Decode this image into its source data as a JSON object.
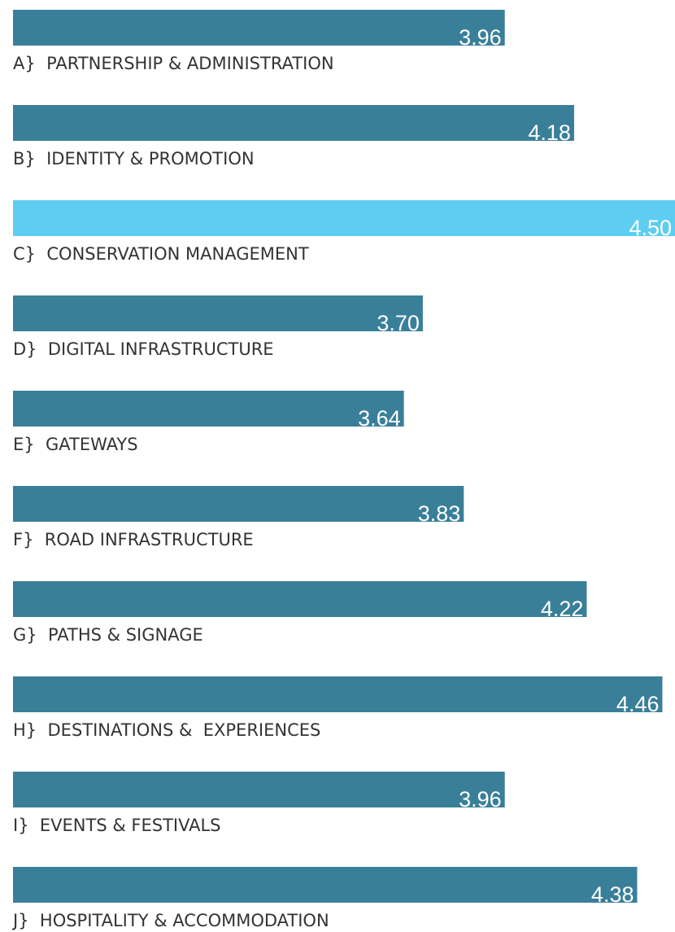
{
  "chart_data": {
    "type": "barh",
    "categories": [
      "A}  PARTNERSHIP & ADMINISTRATION",
      "B}  IDENTITY & PROMOTION",
      "C}  CONSERVATION MANAGEMENT",
      "D}  DIGITAL INFRASTRUCTURE",
      "E}  GATEWAYS",
      "F}  ROAD INFRASTRUCTURE",
      "G}  PATHS & SIGNAGE",
      "H}  DESTINATIONS &  EXPERIENCES",
      "I}  EVENTS & FESTIVALS",
      "J}  HOSPITALITY & ACCOMMODATION"
    ],
    "values": [
      3.96,
      4.18,
      4.5,
      3.7,
      3.64,
      3.83,
      4.22,
      4.46,
      3.96,
      4.38
    ],
    "value_labels": [
      "3.96",
      "4.18",
      "4.50",
      "3.70",
      "3.64",
      "3.83",
      "4.22",
      "4.46",
      "3.96",
      "4.38"
    ],
    "colors": [
      "#3a7f99",
      "#3a7f99",
      "#5ecdf2",
      "#3a7f99",
      "#3a7f99",
      "#3a7f99",
      "#3a7f99",
      "#3a7f99",
      "#3a7f99",
      "#3a7f99"
    ],
    "xlim": [
      2.4,
      4.5
    ]
  }
}
